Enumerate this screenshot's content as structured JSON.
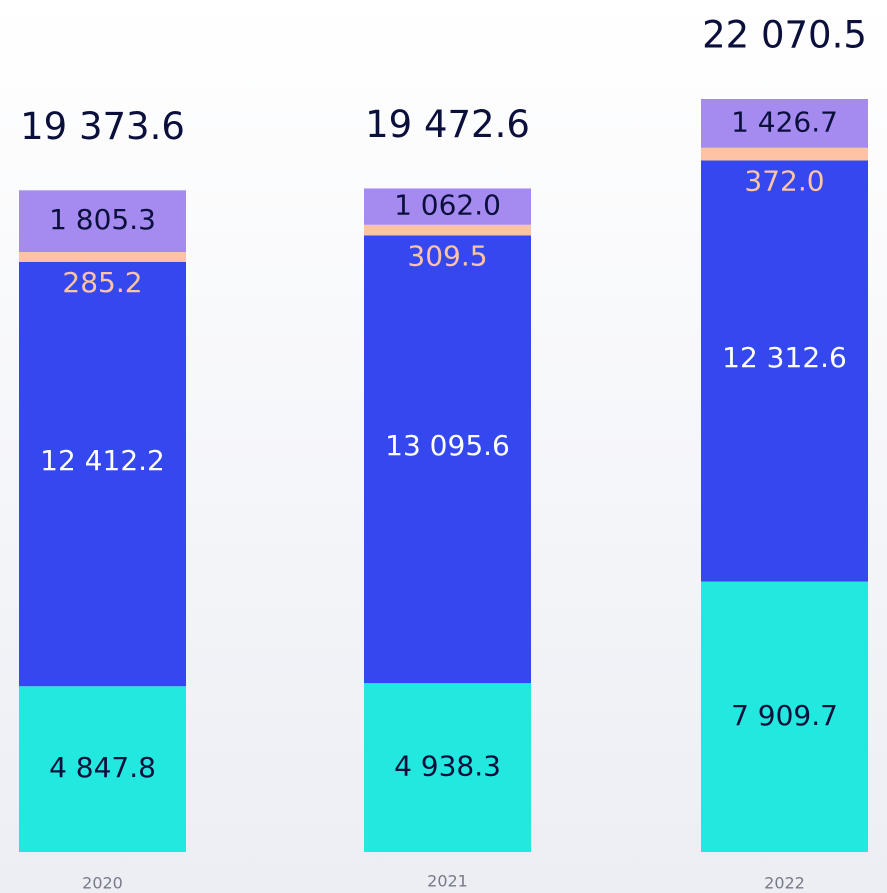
{
  "chart_data": {
    "type": "bar",
    "stacked": true,
    "categories": [
      "2020",
      "2021",
      "2022"
    ],
    "totals": [
      19373.6,
      19472.6,
      22070.5
    ],
    "total_labels": [
      "19 373.6",
      "19 472.6",
      "22 070.5"
    ],
    "series": [
      {
        "color": "#22e8e0",
        "label_color": "#0a0f3c",
        "values": [
          4847.8,
          4938.3,
          7909.7
        ],
        "value_labels": [
          "4 847.8",
          "4 938.3",
          "7 909.7"
        ]
      },
      {
        "color": "#3548f0",
        "label_color": "#ffffff",
        "values": [
          12412.2,
          13095.6,
          12312.6
        ],
        "value_labels": [
          "12 412.2",
          "13 095.6",
          "12 312.6"
        ]
      },
      {
        "color": "#fdc3a4",
        "label_color": "#fdc3a4",
        "values": [
          285.2,
          309.5,
          372.0
        ],
        "value_labels": [
          "285.2",
          "309.5",
          "372.0"
        ]
      },
      {
        "color": "#a58bf0",
        "label_color": "#0a0f3c",
        "values": [
          1805.3,
          1062.0,
          1426.7
        ],
        "value_labels": [
          "1 805.3",
          "1 062.0",
          "1 426.7"
        ]
      }
    ]
  }
}
